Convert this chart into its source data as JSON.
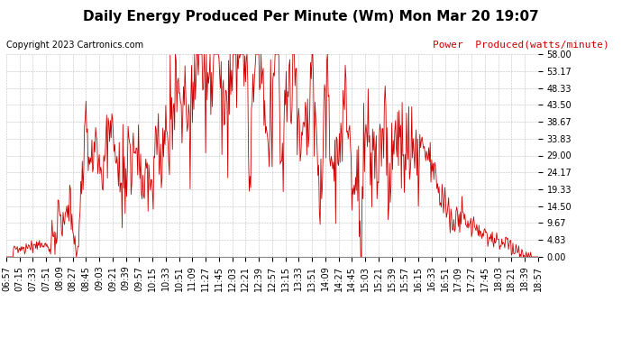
{
  "title": "Daily Energy Produced Per Minute (Wm) Mon Mar 20 19:07",
  "copyright": "Copyright 2023 Cartronics.com",
  "legend_label": "Power  Produced(watts/minute)",
  "y_min": 0.0,
  "y_max": 58.0,
  "y_ticks": [
    0.0,
    4.83,
    9.67,
    14.5,
    19.33,
    24.17,
    29.0,
    33.83,
    38.67,
    43.5,
    48.33,
    53.17,
    58.0
  ],
  "line_color": "#cc0000",
  "background_color": "#ffffff",
  "grid_color": "#c0c0c0",
  "title_fontsize": 11,
  "copyright_fontsize": 7,
  "legend_fontsize": 8,
  "tick_fontsize": 7,
  "x_labels": [
    "06:57",
    "07:15",
    "07:33",
    "07:51",
    "08:09",
    "08:27",
    "08:45",
    "09:03",
    "09:21",
    "09:39",
    "09:57",
    "10:15",
    "10:33",
    "10:51",
    "11:09",
    "11:27",
    "11:45",
    "12:03",
    "12:21",
    "12:39",
    "12:57",
    "13:15",
    "13:33",
    "13:51",
    "14:09",
    "14:27",
    "14:45",
    "15:03",
    "15:21",
    "15:39",
    "15:57",
    "16:15",
    "16:33",
    "16:51",
    "17:09",
    "17:27",
    "17:45",
    "18:03",
    "18:21",
    "18:39",
    "18:57"
  ]
}
